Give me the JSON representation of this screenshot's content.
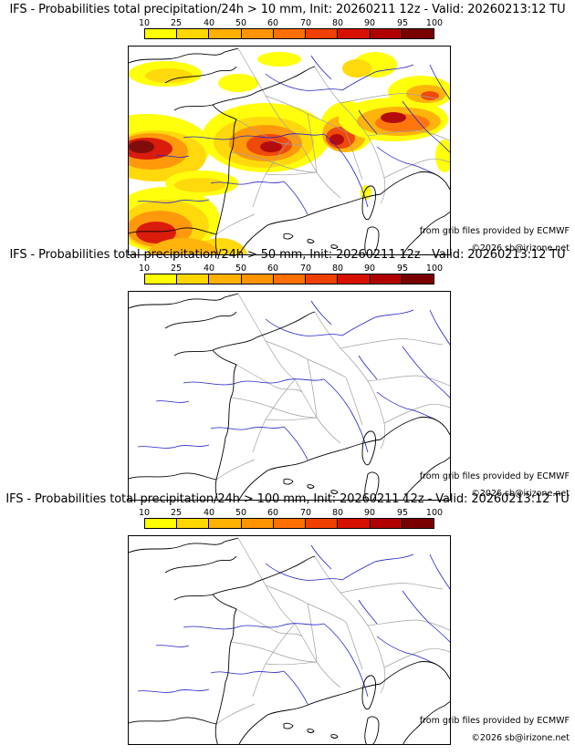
{
  "panels": [
    {
      "title": "IFS - Probabilities total precipitation/24h > 10 mm, Init: 20260211 12z - Valid: 20260213:12 TU",
      "has_precip": true
    },
    {
      "title": "IFS - Probabilities total precipitation/24h > 50 mm, Init: 20260211 12z - Valid: 20260213:12 TU",
      "has_precip": false
    },
    {
      "title": "IFS - Probabilities total precipitation/24h > 100 mm, Init: 20260211 12z - Valid: 20260213:12 TU",
      "has_precip": false
    }
  ],
  "colorbar": {
    "ticks": [
      "10",
      "25",
      "40",
      "50",
      "60",
      "70",
      "80",
      "90",
      "95",
      "100"
    ],
    "colors": [
      "#ffff00",
      "#ffd700",
      "#ffb000",
      "#ff9400",
      "#ff7000",
      "#f04000",
      "#d81000",
      "#b00000",
      "#7a0000"
    ]
  },
  "credits": {
    "source": "from grib files provided by ECMWF",
    "copyright": "©2026 sb@irizone.net"
  },
  "colors": {
    "coast": "#000000",
    "rivers": "#2222cc",
    "borders": "#a0a0a0"
  }
}
